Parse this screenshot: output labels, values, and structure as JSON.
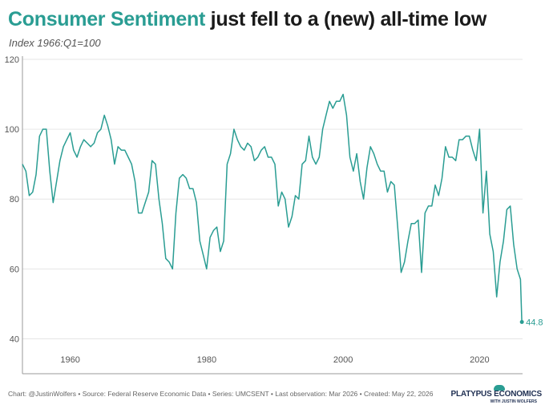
{
  "header": {
    "title_accent": "Consumer Sentiment",
    "title_rest": " just fell to a (new) all-time low",
    "subtitle": "Index 1966:Q1=100"
  },
  "footer": {
    "source": "Chart: @JustinWolfers • Source: Federal Reserve Economic Data • Series: UMCSENT • Last observation: Mar 2026 • Created: May 22, 2026"
  },
  "logo": {
    "name": "PLATYPUS ECONOMICS",
    "tagline": "WITH JUSTIN WOLFERS"
  },
  "colors": {
    "accent": "#2a9d93",
    "title": "#1a1a1a",
    "grid": "#e6e6e6",
    "axis": "#999999"
  },
  "chart_data": {
    "type": "line",
    "title": "Consumer Sentiment just fell to a (new) all-time low",
    "ylabel": "Index 1966:Q1=100",
    "xlim": [
      1953,
      2026.3
    ],
    "ylim": [
      30,
      120
    ],
    "xticks": [
      1960,
      1980,
      2000,
      2020
    ],
    "yticks": [
      40,
      60,
      80,
      100,
      120
    ],
    "grid": true,
    "end_label": "44.8",
    "series": [
      {
        "x": [
          1953.0,
          1953.5,
          1954.0,
          1954.5,
          1955.0,
          1955.5,
          1956.0,
          1956.5,
          1957.0,
          1957.5,
          1958.0,
          1958.5,
          1959.0,
          1959.5,
          1960.0,
          1960.5,
          1961.0,
          1961.5,
          1962.0,
          1962.5,
          1963.0,
          1963.5,
          1964.0,
          1964.5,
          1965.0,
          1965.5,
          1966.0,
          1966.5,
          1967.0,
          1967.5,
          1968.0,
          1968.5,
          1969.0,
          1969.5,
          1970.0,
          1970.5,
          1971.0,
          1971.5,
          1972.0,
          1972.5,
          1973.0,
          1973.5,
          1974.0,
          1974.5,
          1975.0,
          1975.5,
          1976.0,
          1976.5,
          1977.0,
          1977.5,
          1978.0,
          1978.5,
          1979.0,
          1979.5,
          1980.0,
          1980.5,
          1981.0,
          1981.5,
          1982.0,
          1982.5,
          1983.0,
          1983.5,
          1984.0,
          1984.5,
          1985.0,
          1985.5,
          1986.0,
          1986.5,
          1987.0,
          1987.5,
          1988.0,
          1988.5,
          1989.0,
          1989.5,
          1990.0,
          1990.5,
          1991.0,
          1991.5,
          1992.0,
          1992.5,
          1993.0,
          1993.5,
          1994.0,
          1994.5,
          1995.0,
          1995.5,
          1996.0,
          1996.5,
          1997.0,
          1997.5,
          1998.0,
          1998.5,
          1999.0,
          1999.5,
          2000.0,
          2000.5,
          2001.0,
          2001.5,
          2002.0,
          2002.5,
          2003.0,
          2003.5,
          2004.0,
          2004.5,
          2005.0,
          2005.5,
          2006.0,
          2006.5,
          2007.0,
          2007.5,
          2008.0,
          2008.5,
          2009.0,
          2009.5,
          2010.0,
          2010.5,
          2011.0,
          2011.5,
          2012.0,
          2012.5,
          2013.0,
          2013.5,
          2014.0,
          2014.5,
          2015.0,
          2015.5,
          2016.0,
          2016.5,
          2017.0,
          2017.5,
          2018.0,
          2018.5,
          2019.0,
          2019.5,
          2020.0,
          2020.5,
          2021.0,
          2021.5,
          2022.0,
          2022.5,
          2023.0,
          2023.5,
          2024.0,
          2024.5,
          2025.0,
          2025.5,
          2026.0,
          2026.2
        ],
        "y": [
          90.0,
          88.0,
          81.0,
          82.0,
          87.0,
          98.0,
          100.0,
          100.0,
          88.0,
          79.0,
          85.0,
          91.0,
          95.0,
          97.0,
          99.0,
          94.0,
          92.0,
          95.0,
          97.0,
          96.0,
          95.0,
          96.0,
          99.0,
          100.0,
          104.0,
          101.0,
          97.0,
          90.0,
          95.0,
          94.0,
          94.0,
          92.0,
          90.0,
          85.0,
          76.0,
          76.0,
          79.0,
          82.0,
          91.0,
          90.0,
          80.0,
          73.0,
          63.0,
          62.0,
          60.0,
          76.0,
          86.0,
          87.0,
          86.0,
          83.0,
          83.0,
          79.0,
          68.0,
          64.0,
          60.0,
          69.0,
          71.0,
          72.0,
          65.0,
          68.0,
          90.0,
          93.0,
          100.0,
          97.0,
          95.0,
          94.0,
          96.0,
          95.0,
          91.0,
          92.0,
          94.0,
          95.0,
          92.0,
          92.0,
          90.0,
          78.0,
          82.0,
          80.0,
          72.0,
          75.0,
          81.0,
          80.0,
          90.0,
          91.0,
          98.0,
          92.0,
          90.0,
          92.0,
          100.0,
          104.0,
          108.0,
          106.0,
          108.0,
          108.0,
          110.0,
          104.0,
          92.0,
          88.0,
          93.0,
          85.0,
          80.0,
          89.0,
          95.0,
          93.0,
          90.0,
          88.0,
          88.0,
          82.0,
          85.0,
          84.0,
          72.0,
          59.0,
          62.0,
          68.0,
          73.0,
          73.0,
          74.0,
          59.0,
          76.0,
          78.0,
          78.0,
          84.0,
          81.0,
          86.0,
          95.0,
          92.0,
          92.0,
          91.0,
          97.0,
          97.0,
          98.0,
          98.0,
          94.0,
          91.0,
          100.0,
          76.0,
          88.0,
          70.0,
          65.0,
          52.0,
          62.0,
          68.0,
          77.0,
          78.0,
          67.0,
          60.0,
          57.0,
          44.8
        ]
      }
    ]
  }
}
